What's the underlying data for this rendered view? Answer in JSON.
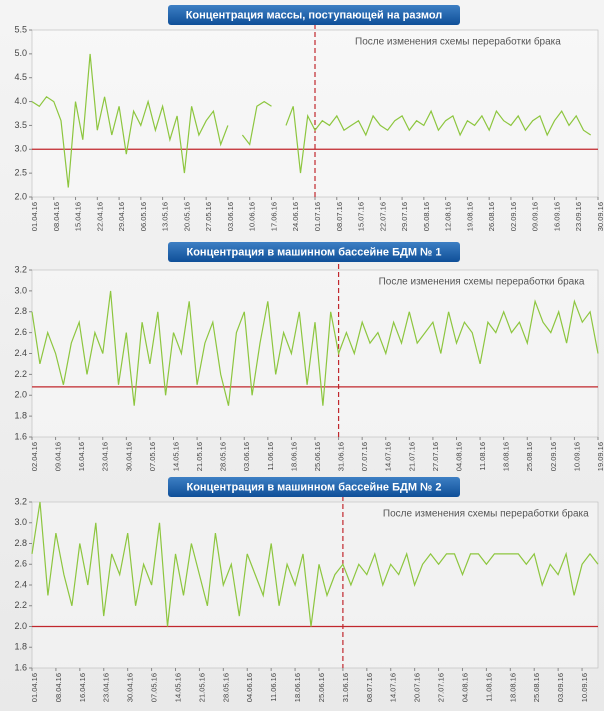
{
  "chart_data": [
    {
      "type": "line",
      "title": "Концентрация массы, поступающей на размол",
      "annotation": "После изменения схемы переработки брака",
      "categories": [
        "01.04.16",
        null,
        null,
        "08.04.16",
        null,
        null,
        "15.04.16",
        null,
        null,
        "22.04.16",
        null,
        null,
        "29.04.16",
        null,
        null,
        "06.05.16",
        null,
        null,
        "13.05.16",
        null,
        null,
        "20.05.16",
        null,
        null,
        "27.05.16",
        null,
        null,
        "03.06.16",
        null,
        null,
        "10.06.16",
        null,
        null,
        "17.06.16",
        null,
        null,
        "24.06.16",
        null,
        null,
        "01.07.16",
        null,
        null,
        "08.07.16",
        null,
        null,
        "15.07.16",
        null,
        null,
        "22.07.16",
        null,
        null,
        "29.07.16",
        null,
        null,
        "05.08.16",
        null,
        null,
        "12.08.16",
        null,
        null,
        "19.08.16",
        null,
        null,
        "26.08.16",
        null,
        null,
        "02.09.16",
        null,
        null,
        "09.09.16",
        null,
        null,
        "16.09.16",
        null,
        null,
        "23.09.16",
        null,
        null,
        "30.09.16"
      ],
      "values": [
        4.0,
        3.9,
        4.1,
        4.0,
        3.6,
        2.2,
        4.0,
        3.2,
        5.0,
        3.4,
        4.1,
        3.3,
        3.9,
        2.9,
        3.8,
        3.5,
        4.0,
        3.4,
        3.9,
        3.2,
        3.7,
        2.5,
        3.9,
        3.3,
        3.6,
        3.8,
        3.1,
        3.5,
        null,
        3.3,
        3.1,
        3.9,
        4.0,
        3.9,
        null,
        3.5,
        3.9,
        2.5,
        3.7,
        3.4,
        3.6,
        3.5,
        3.7,
        3.4,
        3.5,
        3.6,
        3.3,
        3.7,
        3.5,
        3.4,
        3.6,
        3.7,
        3.4,
        3.6,
        3.5,
        3.8,
        3.4,
        3.6,
        3.7,
        3.3,
        3.6,
        3.5,
        3.7,
        3.4,
        3.8,
        3.6,
        3.5,
        3.7,
        3.4,
        3.6,
        3.7,
        3.3,
        3.6,
        3.8,
        3.5,
        3.7,
        3.4,
        3.3,
        null
      ],
      "color": "#8dc63f",
      "reference_line": 3.0,
      "reference_color": "#c1272d",
      "divider": "01.07.16",
      "ylim": [
        2.0,
        5.5
      ],
      "yticks": [
        {
          "value": 2,
          "label": "2.0"
        },
        2.5,
        {
          "value": 3,
          "label": "3.0"
        },
        3.5,
        {
          "value": 4,
          "label": "4.0"
        },
        4.5,
        {
          "value": 5,
          "label": "5.0"
        },
        5.5
      ]
    },
    {
      "type": "line",
      "title": "Концентрация в машинном бассейне БДМ № 1",
      "annotation": "После изменения схемы переработки брака",
      "categories": [
        "02.04.16",
        null,
        null,
        "09.04.16",
        null,
        null,
        "16.04.16",
        null,
        null,
        "23.04.16",
        null,
        null,
        "30.04.16",
        null,
        null,
        "07.05.16",
        null,
        null,
        "14.05.16",
        null,
        null,
        "21.05.16",
        null,
        null,
        "28.05.16",
        null,
        null,
        "03.06.16",
        null,
        null,
        "11.06.16",
        null,
        null,
        "18.06.16",
        null,
        null,
        "25.06.16",
        null,
        null,
        "31.06.16",
        null,
        null,
        "07.07.16",
        null,
        null,
        "14.07.16",
        null,
        null,
        "21.07.16",
        null,
        null,
        "27.07.16",
        null,
        null,
        "04.08.16",
        null,
        null,
        "11.08.16",
        null,
        null,
        "18.08.16",
        null,
        null,
        "25.08.16",
        null,
        null,
        "02.09.16",
        null,
        null,
        "10.09.16",
        null,
        null,
        "19.09.16"
      ],
      "values": [
        2.8,
        2.3,
        2.6,
        2.4,
        2.1,
        2.5,
        2.7,
        2.2,
        2.6,
        2.4,
        3.0,
        2.1,
        2.6,
        1.9,
        2.7,
        2.3,
        2.8,
        2.0,
        2.6,
        2.4,
        2.9,
        2.1,
        2.5,
        2.7,
        2.2,
        1.9,
        2.6,
        2.8,
        2.0,
        2.5,
        2.9,
        2.2,
        2.6,
        2.4,
        2.8,
        2.1,
        2.7,
        1.9,
        2.8,
        2.4,
        2.6,
        2.4,
        2.7,
        2.5,
        2.6,
        2.4,
        2.7,
        2.5,
        2.8,
        2.5,
        2.6,
        2.7,
        2.4,
        2.8,
        2.5,
        2.7,
        2.6,
        2.3,
        2.7,
        2.6,
        2.8,
        2.6,
        2.7,
        2.5,
        2.9,
        2.7,
        2.6,
        2.8,
        2.5,
        2.9,
        2.7,
        2.8,
        2.4
      ],
      "color": "#8dc63f",
      "reference_line": 2.08,
      "reference_color": "#c1272d",
      "divider": "31.06.16",
      "ylim": [
        1.6,
        3.2
      ],
      "yticks": [
        1.6,
        1.8,
        {
          "value": 2,
          "label": "2.0"
        },
        2.2,
        2.4,
        2.6,
        2.8,
        {
          "value": 3,
          "label": "3.0"
        },
        3.2
      ]
    },
    {
      "type": "line",
      "title": "Концентрация в машинном бассейне БДМ № 2",
      "annotation": "После изменения схемы переработки брака",
      "categories": [
        "01.04.16",
        null,
        null,
        "08.04.16",
        null,
        null,
        "16.04.16",
        null,
        null,
        "23.04.16",
        null,
        null,
        "30.04.16",
        null,
        null,
        "07.05.16",
        null,
        null,
        "14.05.16",
        null,
        null,
        "21.05.16",
        null,
        null,
        "28.05.16",
        null,
        null,
        "04.06.16",
        null,
        null,
        "11.06.16",
        null,
        null,
        "18.06.16",
        null,
        null,
        "25.06.16",
        null,
        null,
        "31.06.16",
        null,
        null,
        "08.07.16",
        null,
        null,
        "14.07.16",
        null,
        null,
        "20.07.16",
        null,
        null,
        "27.07.16",
        null,
        null,
        "04.08.16",
        null,
        null,
        "11.08.16",
        null,
        null,
        "18.08.16",
        null,
        null,
        "25.08.16",
        null,
        null,
        "03.09.16",
        null,
        null,
        "10.09.16",
        null,
        null
      ],
      "values": [
        2.7,
        3.2,
        2.3,
        2.9,
        2.5,
        2.2,
        2.8,
        2.4,
        3.0,
        2.1,
        2.7,
        2.5,
        2.9,
        2.2,
        2.6,
        2.4,
        3.0,
        2.0,
        2.7,
        2.3,
        2.8,
        2.5,
        2.2,
        2.9,
        2.4,
        2.6,
        2.1,
        2.7,
        2.5,
        2.3,
        2.8,
        2.2,
        2.6,
        2.4,
        2.7,
        2.0,
        2.6,
        2.3,
        2.5,
        2.6,
        2.4,
        2.6,
        2.5,
        2.7,
        2.4,
        2.6,
        2.5,
        2.7,
        2.4,
        2.6,
        2.7,
        2.6,
        2.7,
        2.7,
        2.5,
        2.7,
        2.7,
        2.6,
        2.7,
        2.7,
        2.7,
        2.7,
        2.6,
        2.7,
        2.4,
        2.6,
        2.5,
        2.7,
        2.3,
        2.6,
        2.7,
        2.6
      ],
      "color": "#8dc63f",
      "reference_line": 2.0,
      "reference_color": "#c1272d",
      "divider": "31.06.16",
      "ylim": [
        1.6,
        3.2
      ],
      "yticks": [
        1.6,
        1.8,
        {
          "value": 2,
          "label": "2.0"
        },
        2.2,
        2.4,
        2.6,
        2.8,
        {
          "value": 3,
          "label": "3.0"
        },
        3.2
      ]
    }
  ]
}
